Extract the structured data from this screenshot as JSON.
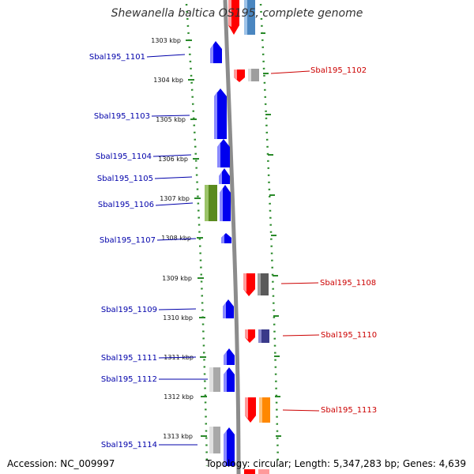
{
  "title": "Shewanella baltica OS195, complete genome",
  "footer": {
    "accession": "Accession: NC_009997",
    "topology": "Topology: circular; Length: 5,347,283 bp; Genes: 4,639"
  },
  "colors": {
    "left_label": "#0000aa",
    "right_label": "#cc0000",
    "tick": "#2a8a2a",
    "backbone": "#8c8c8c"
  },
  "ticks": [
    "1303 kbp",
    "1304 kbp",
    "1305 kbp",
    "1306 kbp",
    "1307 kbp",
    "1308 kbp",
    "1309 kbp",
    "1310 kbp",
    "1311 kbp",
    "1312 kbp",
    "1313 kbp"
  ],
  "left_labels": [
    "Sbal195_1101",
    "Sbal195_1103",
    "Sbal195_1104",
    "Sbal195_1105",
    "Sbal195_1106",
    "Sbal195_1107",
    "Sbal195_1109",
    "Sbal195_1111",
    "Sbal195_1112",
    "Sbal195_1114"
  ],
  "right_labels": [
    "Sbal195_1102",
    "Sbal195_1108",
    "Sbal195_1110",
    "Sbal195_1113"
  ]
}
